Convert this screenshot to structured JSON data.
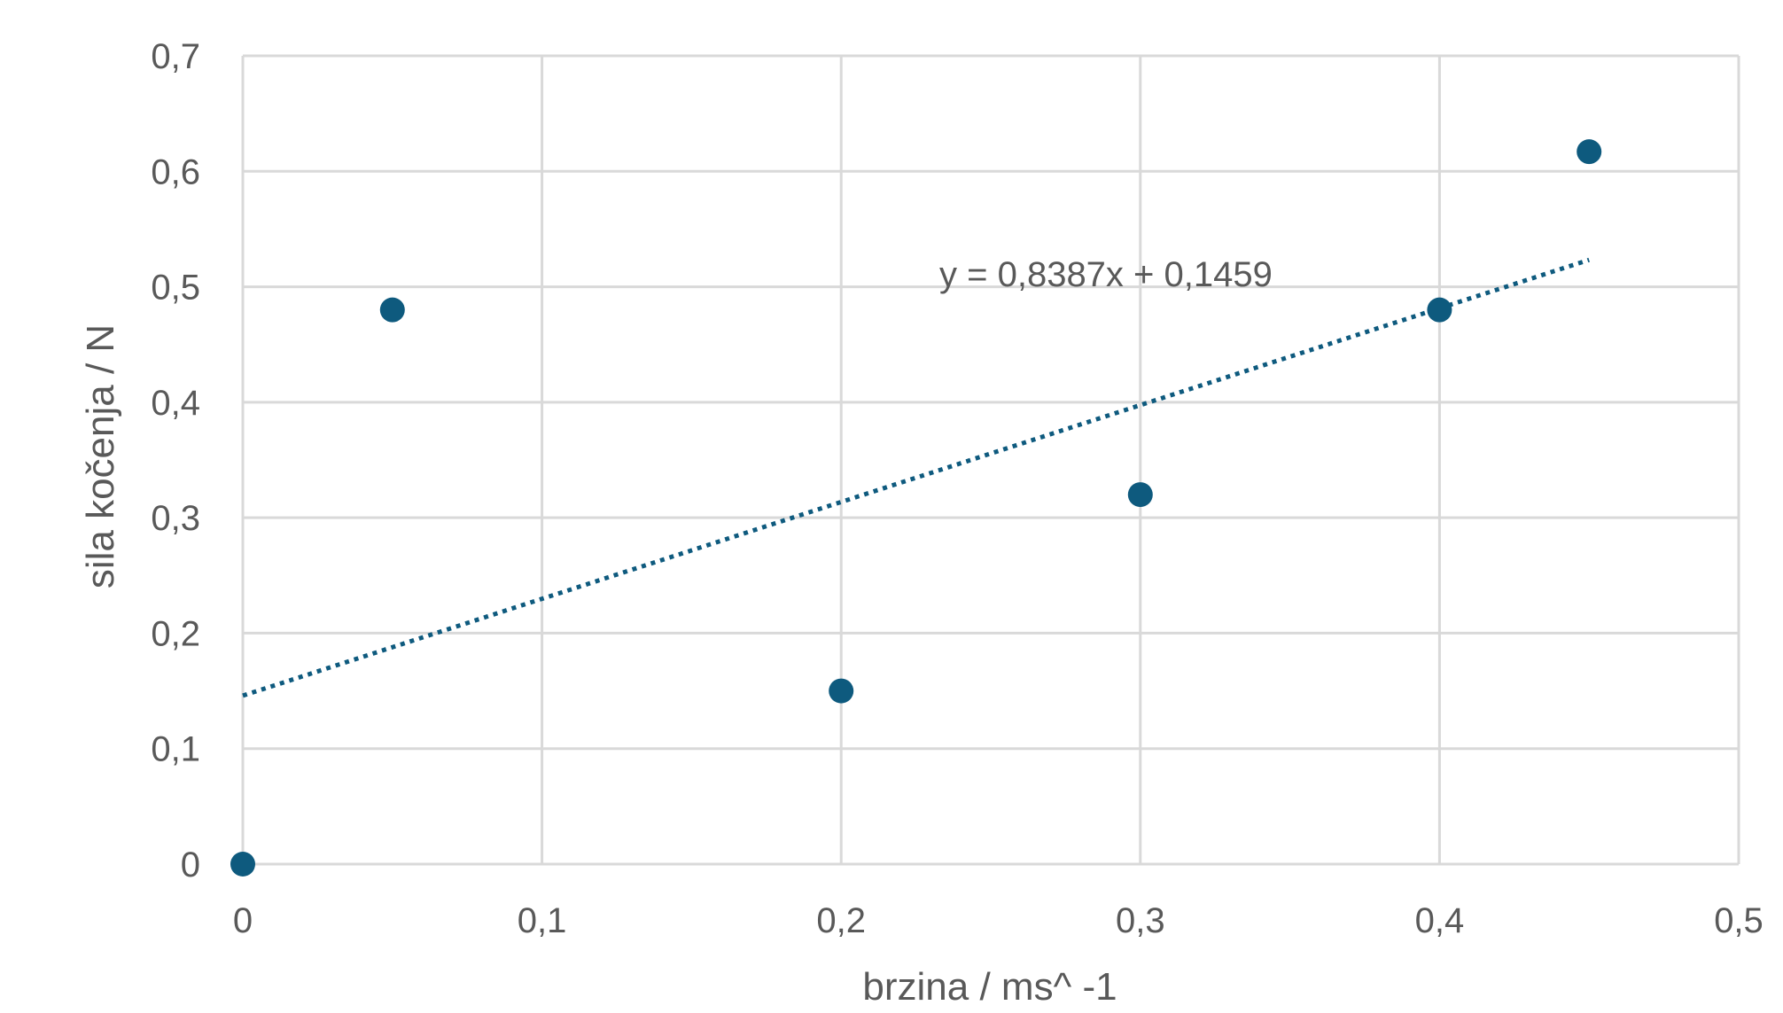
{
  "chart_data": {
    "type": "scatter",
    "title": "",
    "xlabel": "brzina / ms^ -1",
    "ylabel": "sila kočenja / N",
    "xlim": [
      0,
      0.5
    ],
    "ylim": [
      0,
      0.7
    ],
    "x_ticks": [
      "0",
      "0,1",
      "0,2",
      "0,3",
      "0,4",
      "0,5"
    ],
    "y_ticks": [
      "0",
      "0,1",
      "0,2",
      "0,3",
      "0,4",
      "0,5",
      "0,6",
      "0,7"
    ],
    "x_tick_values": [
      0,
      0.1,
      0.2,
      0.3,
      0.4,
      0.5
    ],
    "y_tick_values": [
      0,
      0.1,
      0.2,
      0.3,
      0.4,
      0.5,
      0.6,
      0.7
    ],
    "grid": true,
    "series": [
      {
        "x": [
          0,
          0.05,
          0.2,
          0.3,
          0.4,
          0.45
        ],
        "y": [
          0,
          0.48,
          0.15,
          0.32,
          0.48,
          0.617
        ],
        "color": "#0e5a7e"
      }
    ],
    "trendline": {
      "type": "linear",
      "slope": 0.8387,
      "intercept": 0.1459,
      "x_range": [
        0,
        0.45
      ],
      "equation_label": "y = 0,8387x + 0,1459",
      "color": "#0e5a7e",
      "style": "dotted"
    },
    "colors": {
      "grid": "#d9d9d9",
      "text": "#595959",
      "marker": "#0e5a7e"
    }
  }
}
